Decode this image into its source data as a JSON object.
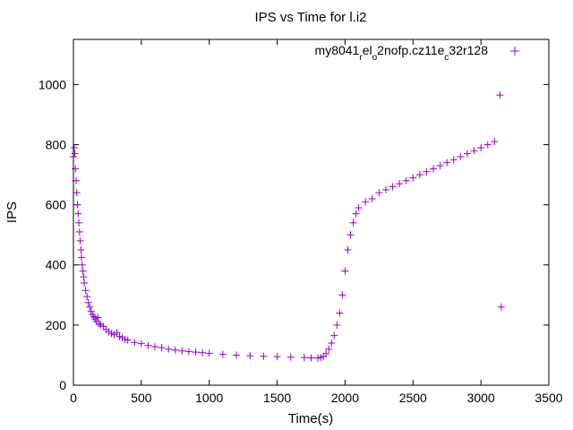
{
  "chart_data": {
    "type": "scatter",
    "title": "IPS vs Time for l.i2",
    "xlabel": "Time(s)",
    "ylabel": "IPS",
    "xlim": [
      0,
      3500
    ],
    "ylim": [
      0,
      1150
    ],
    "xticks": [
      0,
      500,
      1000,
      1500,
      2000,
      2500,
      3000,
      3500
    ],
    "yticks": [
      0,
      200,
      400,
      600,
      800,
      1000
    ],
    "grid": false,
    "legend_position": "top-right",
    "marker": "plus",
    "series_color": "#9400d3",
    "legend": {
      "parts": [
        {
          "text": "my8041",
          "sub": false
        },
        {
          "text": "r",
          "sub": true
        },
        {
          "text": "el",
          "sub": false
        },
        {
          "text": "o",
          "sub": true
        },
        {
          "text": "2nofp.cz11e",
          "sub": false
        },
        {
          "text": "c",
          "sub": true
        },
        {
          "text": "32r128",
          "sub": false
        }
      ]
    },
    "series": [
      {
        "points": [
          [
            0,
            760
          ],
          [
            5,
            790
          ],
          [
            10,
            770
          ],
          [
            15,
            720
          ],
          [
            20,
            680
          ],
          [
            25,
            640
          ],
          [
            30,
            600
          ],
          [
            35,
            570
          ],
          [
            40,
            540
          ],
          [
            45,
            510
          ],
          [
            50,
            480
          ],
          [
            55,
            450
          ],
          [
            60,
            425
          ],
          [
            65,
            400
          ],
          [
            70,
            380
          ],
          [
            75,
            360
          ],
          [
            80,
            340
          ],
          [
            90,
            315
          ],
          [
            100,
            295
          ],
          [
            110,
            275
          ],
          [
            120,
            260
          ],
          [
            130,
            245
          ],
          [
            140,
            235
          ],
          [
            150,
            228
          ],
          [
            160,
            220
          ],
          [
            170,
            212
          ],
          [
            180,
            225
          ],
          [
            190,
            205
          ],
          [
            200,
            200
          ],
          [
            220,
            195
          ],
          [
            240,
            185
          ],
          [
            260,
            178
          ],
          [
            280,
            172
          ],
          [
            300,
            168
          ],
          [
            320,
            175
          ],
          [
            340,
            162
          ],
          [
            360,
            158
          ],
          [
            380,
            152
          ],
          [
            400,
            150
          ],
          [
            450,
            142
          ],
          [
            500,
            138
          ],
          [
            550,
            132
          ],
          [
            600,
            128
          ],
          [
            650,
            125
          ],
          [
            700,
            120
          ],
          [
            750,
            117
          ],
          [
            800,
            114
          ],
          [
            850,
            112
          ],
          [
            900,
            110
          ],
          [
            950,
            108
          ],
          [
            1000,
            106
          ],
          [
            1100,
            103
          ],
          [
            1200,
            100
          ],
          [
            1300,
            98
          ],
          [
            1400,
            96
          ],
          [
            1500,
            95
          ],
          [
            1600,
            93
          ],
          [
            1700,
            92
          ],
          [
            1750,
            91
          ],
          [
            1800,
            90
          ],
          [
            1820,
            92
          ],
          [
            1840,
            96
          ],
          [
            1860,
            105
          ],
          [
            1880,
            120
          ],
          [
            1900,
            140
          ],
          [
            1920,
            165
          ],
          [
            1940,
            200
          ],
          [
            1960,
            240
          ],
          [
            1980,
            300
          ],
          [
            2000,
            380
          ],
          [
            2020,
            450
          ],
          [
            2040,
            500
          ],
          [
            2060,
            540
          ],
          [
            2080,
            570
          ],
          [
            2100,
            590
          ],
          [
            2150,
            610
          ],
          [
            2200,
            620
          ],
          [
            2250,
            640
          ],
          [
            2300,
            650
          ],
          [
            2350,
            660
          ],
          [
            2400,
            670
          ],
          [
            2450,
            680
          ],
          [
            2500,
            690
          ],
          [
            2550,
            700
          ],
          [
            2600,
            710
          ],
          [
            2650,
            720
          ],
          [
            2700,
            730
          ],
          [
            2750,
            740
          ],
          [
            2800,
            750
          ],
          [
            2850,
            760
          ],
          [
            2900,
            770
          ],
          [
            2950,
            780
          ],
          [
            3000,
            790
          ],
          [
            3050,
            800
          ],
          [
            3100,
            810
          ],
          [
            3140,
            965
          ],
          [
            3150,
            260
          ]
        ]
      }
    ]
  }
}
